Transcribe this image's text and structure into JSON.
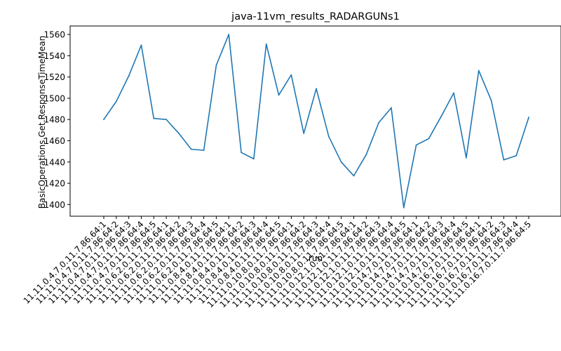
{
  "chart_data": {
    "type": "line",
    "title": "java-11vm_results_RADARGUNs1",
    "xlabel": "run",
    "ylabel": "BasicOperations.Get.ResponseTimeMean",
    "categories": [
      "11.11.0.4.7.0.11.7.86.64:1",
      "11.11.0.4.7.0.11.7.86.64:2",
      "11.11.0.4.7.0.11.7.86.64:3",
      "11.11.0.4.7.0.11.7.86.64:4",
      "11.11.0.4.7.0.11.7.86.64:5",
      "11.11.0.6.2.0.11.7.86.64:1",
      "11.11.0.6.2.0.11.7.86.64:2",
      "11.11.0.6.2.0.11.7.86.64:3",
      "11.11.0.6.2.0.11.7.86.64:4",
      "11.11.0.6.2.0.11.7.86.64:5",
      "11.11.0.8.4.0.11.7.86.64:1",
      "11.11.0.8.4.0.11.7.86.64:2",
      "11.11.0.8.4.0.11.7.86.64:3",
      "11.11.0.8.4.0.11.7.86.64:4",
      "11.11.0.8.4.0.11.7.86.64:5",
      "11.11.0.10.8.0.11.7.86.64:1",
      "11.11.0.10.8.0.11.7.86.64:2",
      "11.11.0.10.8.0.11.7.86.64:3",
      "11.11.0.10.8.0.11.7.86.64:4",
      "11.11.0.10.8.0.11.7.86.64:5",
      "11.11.0.12.1.0.11.7.86.64:1",
      "11.11.0.12.1.0.11.7.86.64:2",
      "11.11.0.12.1.0.11.7.86.64:3",
      "11.11.0.12.1.0.11.7.86.64:4",
      "11.11.0.12.1.0.11.7.86.64:5",
      "11.11.0.14.7.0.11.7.86.64:1",
      "11.11.0.14.7.0.11.7.86.64:2",
      "11.11.0.14.7.0.11.7.86.64:3",
      "11.11.0.14.7.0.11.7.86.64:4",
      "11.11.0.14.7.0.11.7.86.64:5",
      "11.11.0.16.7.0.11.7.86.64:1",
      "11.11.0.16.7.0.11.7.86.64:2",
      "11.11.0.16.7.0.11.7.86.64:3",
      "11.11.0.16.7.0.11.7.86.64:4",
      "11.11.0.16.7.0.11.7.86.64:5"
    ],
    "series": [
      {
        "values": [
          1480,
          1497,
          1521,
          1550,
          1481,
          1480,
          1467,
          1452,
          1451,
          1531,
          1560,
          1449,
          1443,
          1551,
          1503,
          1522,
          1467,
          1509,
          1464,
          1440,
          1427,
          1447,
          1477,
          1491,
          1397,
          1456,
          1462,
          1483,
          1505,
          1444,
          1526,
          1498,
          1442,
          1446,
          1482
        ],
        "color": "#1f77b4"
      }
    ],
    "ylim": [
      1389,
      1568
    ],
    "yticks": [
      1400,
      1420,
      1440,
      1460,
      1480,
      1500,
      1520,
      1540,
      1560
    ],
    "grid": false,
    "legend": "none"
  }
}
